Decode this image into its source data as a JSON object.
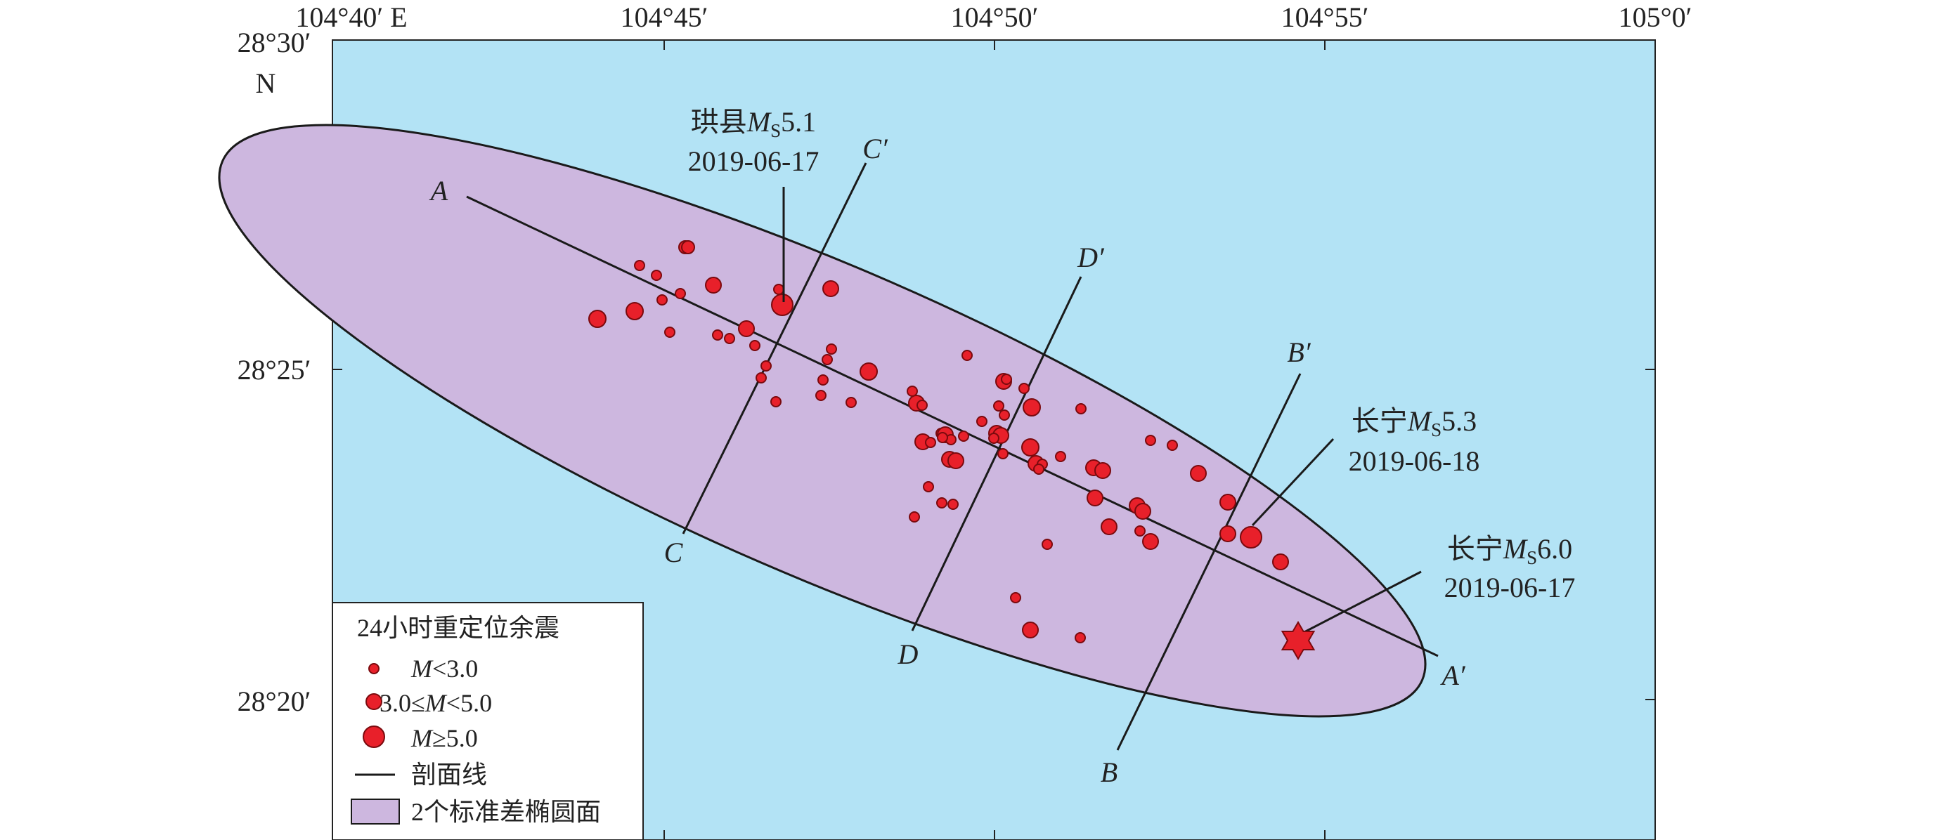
{
  "map": {
    "top_axis_labels": [
      "104°40′ E",
      "104°45′",
      "104°50′",
      "104°55′",
      "105°0′"
    ],
    "left_axis_labels": [
      "28°30′",
      "28°25′",
      "28°20′"
    ],
    "north_label": "N",
    "colors": {
      "water": "#B3E3F5",
      "ellipse_fill": "#CDB7DF",
      "quake_fill": "#E8202A",
      "quake_stroke": "#7A0A0E",
      "line": "#1A1A1A"
    }
  },
  "mainshocks": [
    {
      "name_prefix": "珙县",
      "mag_symbol": "M",
      "mag_sub": "S",
      "mag_value": "5.1",
      "date": "2019-06-17"
    },
    {
      "name_prefix": "长宁",
      "mag_symbol": "M",
      "mag_sub": "S",
      "mag_value": "5.3",
      "date": "2019-06-18"
    },
    {
      "name_prefix": "长宁",
      "mag_symbol": "M",
      "mag_sub": "S",
      "mag_value": "6.0",
      "date": "2019-06-17",
      "marker": "star-icon"
    }
  ],
  "profiles": [
    {
      "start": "A",
      "end": "A′"
    },
    {
      "start": "B",
      "end": "B′"
    },
    {
      "start": "C",
      "end": "C′"
    },
    {
      "start": "D",
      "end": "D′"
    }
  ],
  "legend": {
    "title": "24小时重定位余震",
    "small_prefix": "",
    "small_mag": "M",
    "small_suffix": "<3.0",
    "medium_prefix": "3.0≤",
    "medium_mag": "M",
    "medium_suffix": "<5.0",
    "large_prefix": "",
    "large_mag": "M",
    "large_suffix": "≥5.0",
    "line_label": "剖面线",
    "ellipse_label": "2个标准差椭圆面"
  }
}
